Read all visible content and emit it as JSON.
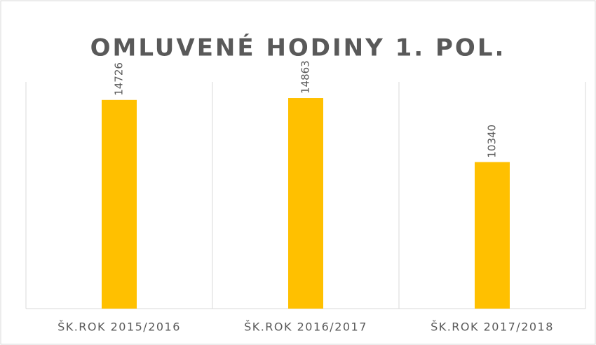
{
  "chart_data": {
    "type": "bar",
    "title": "OMLUVENÉ HODINY 1. POL.",
    "categories": [
      "ŠK.ROK 2015/2016",
      "ŠK.ROK 2016/2017",
      "ŠK.ROK 2017/2018"
    ],
    "values": [
      14726,
      14863,
      10340
    ],
    "color": "#ffc000",
    "ylim": [
      0,
      16000
    ],
    "grid": false
  }
}
